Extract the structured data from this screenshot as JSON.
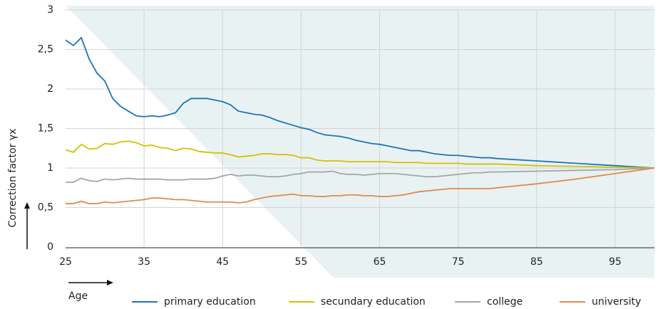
{
  "chart_data": {
    "type": "line",
    "y_label": "Correction factor γx",
    "x_label": "Age",
    "x": [
      25,
      26,
      27,
      28,
      29,
      30,
      31,
      32,
      33,
      34,
      35,
      36,
      37,
      38,
      39,
      40,
      41,
      42,
      43,
      44,
      45,
      46,
      47,
      48,
      49,
      50,
      51,
      52,
      53,
      54,
      55,
      56,
      57,
      58,
      59,
      60,
      61,
      62,
      63,
      64,
      65,
      66,
      67,
      68,
      69,
      70,
      71,
      72,
      73,
      74,
      75,
      76,
      77,
      78,
      79,
      80,
      85,
      90,
      95,
      100
    ],
    "series": [
      {
        "name": "primary education",
        "color": "#1b75bb",
        "values": [
          2.62,
          2.55,
          2.65,
          2.38,
          2.2,
          2.1,
          1.88,
          1.78,
          1.72,
          1.66,
          1.65,
          1.66,
          1.65,
          1.67,
          1.7,
          1.82,
          1.88,
          1.88,
          1.88,
          1.86,
          1.84,
          1.8,
          1.72,
          1.7,
          1.68,
          1.67,
          1.64,
          1.6,
          1.57,
          1.54,
          1.51,
          1.49,
          1.45,
          1.42,
          1.41,
          1.4,
          1.38,
          1.35,
          1.33,
          1.31,
          1.3,
          1.28,
          1.26,
          1.24,
          1.22,
          1.22,
          1.2,
          1.18,
          1.17,
          1.16,
          1.16,
          1.15,
          1.14,
          1.13,
          1.13,
          1.12,
          1.09,
          1.06,
          1.03,
          1.0
        ]
      },
      {
        "name": "secundary education",
        "color": "#d4c000",
        "values": [
          1.23,
          1.2,
          1.3,
          1.24,
          1.25,
          1.31,
          1.3,
          1.33,
          1.34,
          1.32,
          1.28,
          1.29,
          1.26,
          1.25,
          1.22,
          1.25,
          1.24,
          1.21,
          1.2,
          1.19,
          1.19,
          1.17,
          1.14,
          1.15,
          1.16,
          1.18,
          1.18,
          1.17,
          1.17,
          1.16,
          1.13,
          1.13,
          1.1,
          1.09,
          1.09,
          1.09,
          1.08,
          1.08,
          1.08,
          1.08,
          1.08,
          1.08,
          1.07,
          1.07,
          1.07,
          1.07,
          1.06,
          1.06,
          1.06,
          1.06,
          1.06,
          1.05,
          1.05,
          1.05,
          1.05,
          1.05,
          1.03,
          1.02,
          1.01,
          1.0
        ]
      },
      {
        "name": "college",
        "color": "#a6a6a6",
        "values": [
          0.82,
          0.82,
          0.87,
          0.84,
          0.83,
          0.86,
          0.85,
          0.86,
          0.87,
          0.86,
          0.86,
          0.86,
          0.86,
          0.85,
          0.85,
          0.85,
          0.86,
          0.86,
          0.86,
          0.87,
          0.9,
          0.92,
          0.9,
          0.91,
          0.91,
          0.9,
          0.89,
          0.89,
          0.9,
          0.92,
          0.93,
          0.95,
          0.95,
          0.95,
          0.96,
          0.93,
          0.92,
          0.92,
          0.91,
          0.92,
          0.93,
          0.93,
          0.93,
          0.92,
          0.91,
          0.9,
          0.89,
          0.89,
          0.9,
          0.91,
          0.92,
          0.93,
          0.94,
          0.94,
          0.95,
          0.95,
          0.96,
          0.97,
          0.98,
          1.0
        ]
      },
      {
        "name": "university",
        "color": "#e08a4e",
        "values": [
          0.55,
          0.55,
          0.58,
          0.55,
          0.55,
          0.57,
          0.56,
          0.57,
          0.58,
          0.59,
          0.6,
          0.62,
          0.62,
          0.61,
          0.6,
          0.6,
          0.59,
          0.58,
          0.57,
          0.57,
          0.57,
          0.57,
          0.56,
          0.57,
          0.6,
          0.62,
          0.64,
          0.65,
          0.66,
          0.67,
          0.65,
          0.65,
          0.64,
          0.64,
          0.65,
          0.65,
          0.66,
          0.66,
          0.65,
          0.65,
          0.64,
          0.64,
          0.65,
          0.66,
          0.68,
          0.7,
          0.71,
          0.72,
          0.73,
          0.74,
          0.74,
          0.74,
          0.74,
          0.74,
          0.74,
          0.75,
          0.8,
          0.86,
          0.93,
          1.0
        ]
      }
    ],
    "xlim": [
      25,
      100
    ],
    "xticks": [
      25,
      35,
      45,
      55,
      65,
      75,
      85,
      95
    ],
    "ylim": [
      0,
      3
    ],
    "yticks": [
      0,
      {
        "value": 0.5,
        "label": "0,5"
      },
      1,
      {
        "value": 1.5,
        "label": "1,5"
      },
      2,
      {
        "value": 2.5,
        "label": "2,5"
      },
      3
    ],
    "grid": true
  }
}
